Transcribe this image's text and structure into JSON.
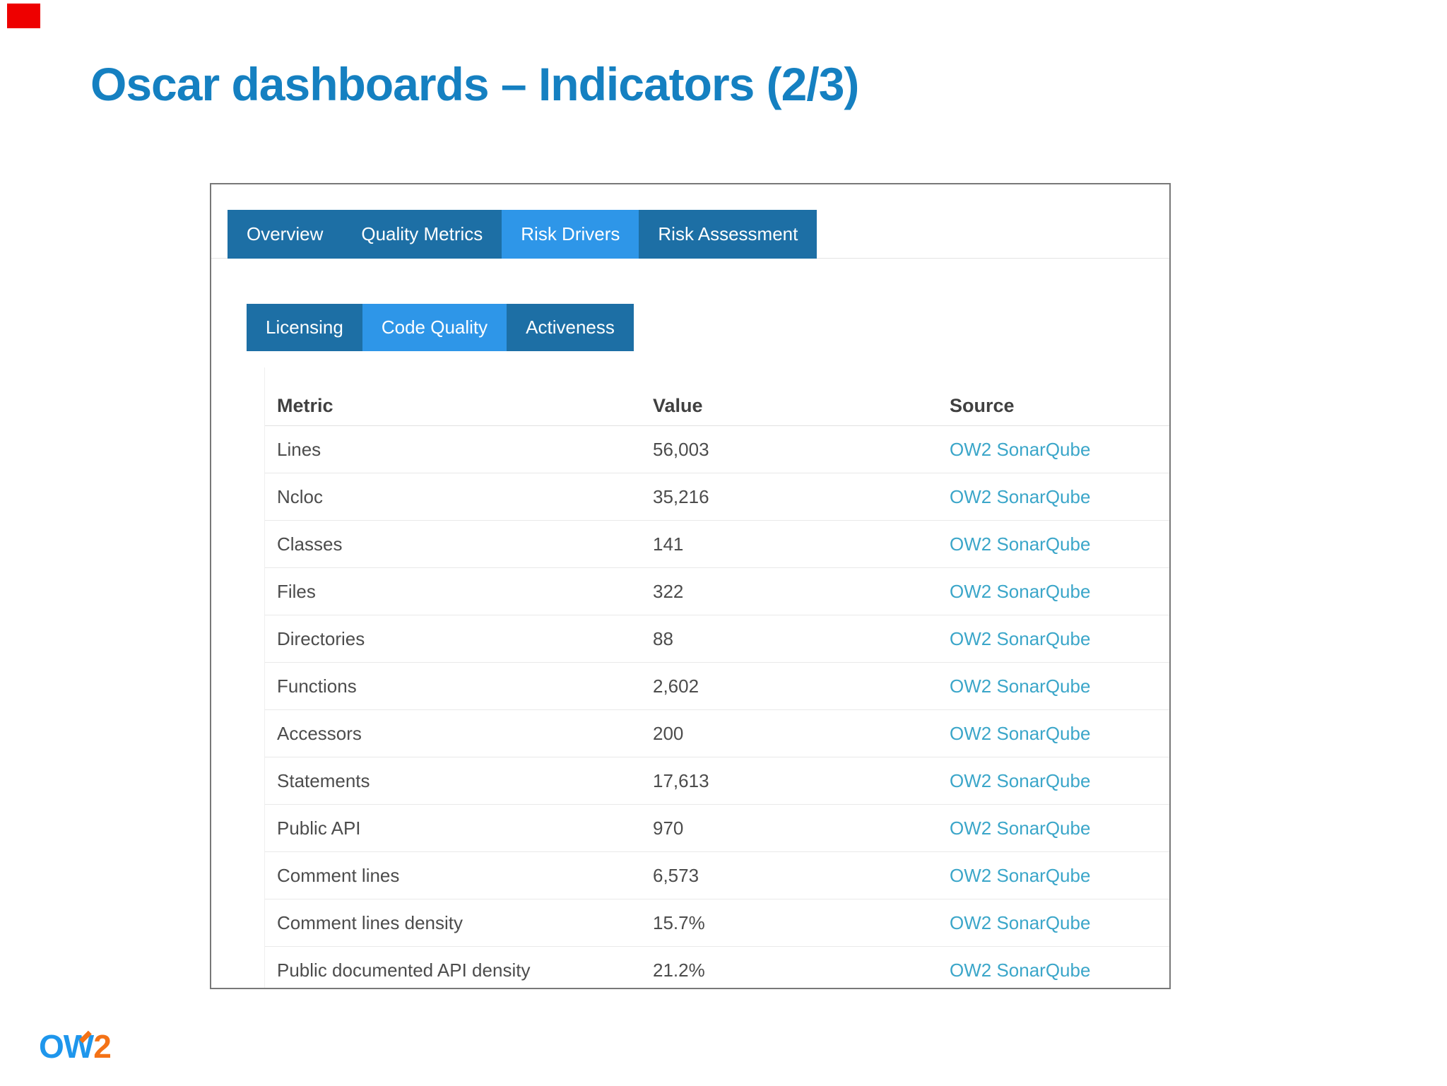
{
  "slide": {
    "title": "Oscar dashboards – Indicators (2/3)",
    "logo": {
      "ow": "OW",
      "two": "2"
    }
  },
  "dashboard": {
    "main_tabs": [
      {
        "label": "Overview",
        "active": false
      },
      {
        "label": "Quality Metrics",
        "active": false
      },
      {
        "label": "Risk Drivers",
        "active": true
      },
      {
        "label": "Risk Assessment",
        "active": false
      }
    ],
    "sub_tabs": [
      {
        "label": "Licensing",
        "active": false
      },
      {
        "label": "Code Quality",
        "active": true
      },
      {
        "label": "Activeness",
        "active": false
      }
    ],
    "table": {
      "columns": [
        "Metric",
        "Value",
        "Source"
      ],
      "rows": [
        {
          "metric": "Lines",
          "value": "56,003",
          "source": "OW2 SonarQube"
        },
        {
          "metric": "Ncloc",
          "value": "35,216",
          "source": "OW2 SonarQube"
        },
        {
          "metric": "Classes",
          "value": "141",
          "source": "OW2 SonarQube"
        },
        {
          "metric": "Files",
          "value": "322",
          "source": "OW2 SonarQube"
        },
        {
          "metric": "Directories",
          "value": "88",
          "source": "OW2 SonarQube"
        },
        {
          "metric": "Functions",
          "value": "2,602",
          "source": "OW2 SonarQube"
        },
        {
          "metric": "Accessors",
          "value": "200",
          "source": "OW2 SonarQube"
        },
        {
          "metric": "Statements",
          "value": "17,613",
          "source": "OW2 SonarQube"
        },
        {
          "metric": "Public API",
          "value": "970",
          "source": "OW2 SonarQube"
        },
        {
          "metric": "Comment lines",
          "value": "6,573",
          "source": "OW2 SonarQube"
        },
        {
          "metric": "Comment lines density",
          "value": "15.7%",
          "source": "OW2 SonarQube"
        },
        {
          "metric": "Public documented API density",
          "value": "21.2%",
          "source": "OW2 SonarQube"
        }
      ]
    }
  },
  "colors": {
    "title_blue": "#1580c1",
    "tab_dark": "#1d6fa5",
    "tab_active": "#2e96e8",
    "link": "#3ba6c9",
    "logo_blue": "#1e96ec",
    "logo_orange": "#f47216",
    "corner_red": "#ee0000"
  }
}
